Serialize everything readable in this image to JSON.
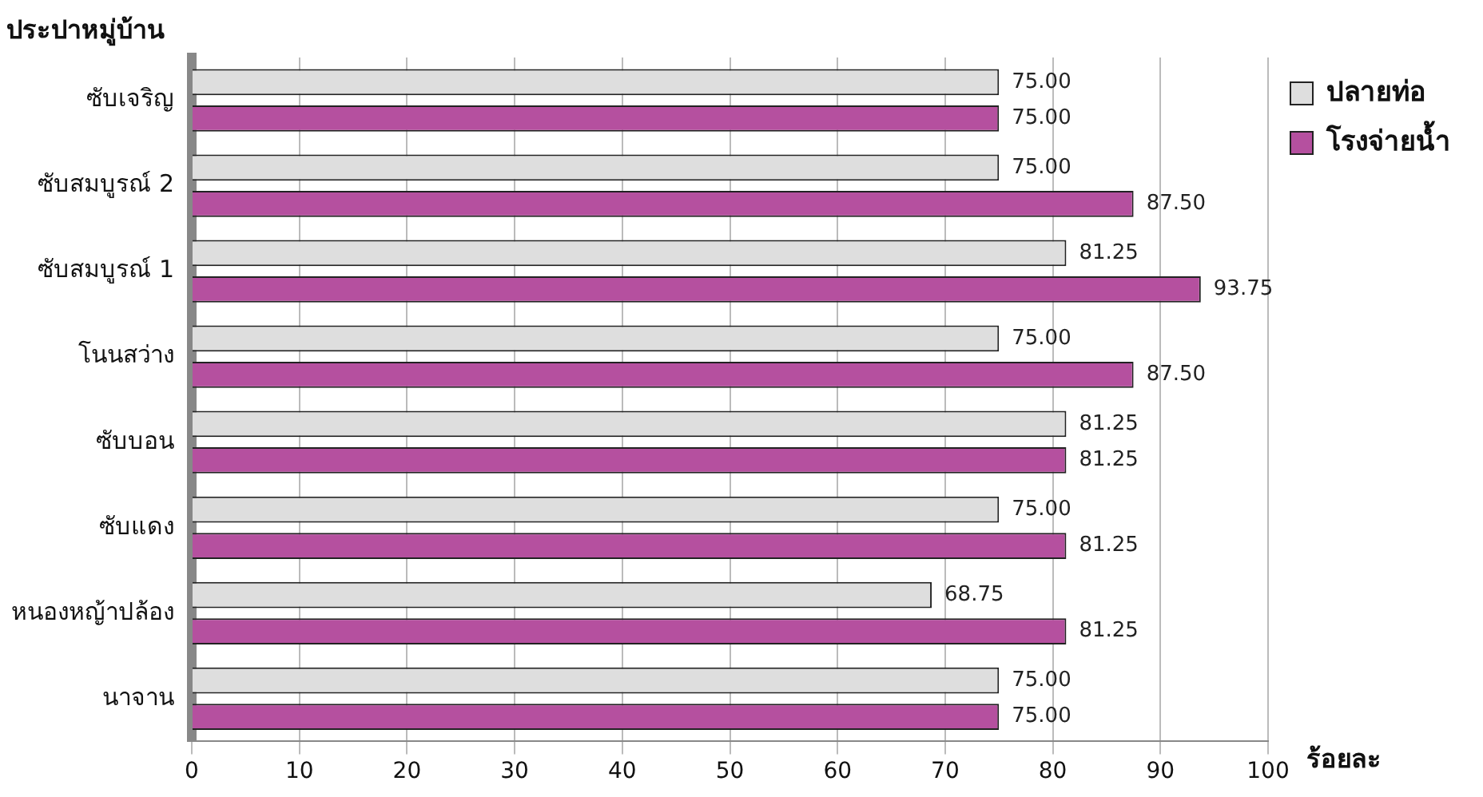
{
  "chart_data": {
    "type": "bar",
    "orientation": "horizontal",
    "ylabel": "ประปาหมู่บ้าน",
    "xlabel": "ร้อยละ",
    "categories": [
      "ซับเจริญ",
      "ซับสมบูรณ์ 2",
      "ซับสมบูรณ์ 1",
      "โนนสว่าง",
      "ซับบอน",
      "ซับแดง",
      "หนองหญ้าปล้อง",
      "นาจาน"
    ],
    "series": [
      {
        "name": "ปลายท่อ",
        "color": "#dedede",
        "values": [
          75,
          75,
          81.25,
          75,
          81.25,
          75,
          68.75,
          75
        ],
        "value_labels": [
          "75.00",
          "75.00",
          "81.25",
          "75.00",
          "81.25",
          "75.00",
          "68.75",
          "75.00"
        ]
      },
      {
        "name": "โรงจ่ายน้ำ",
        "color": "#b5509f",
        "values": [
          75,
          87.5,
          93.75,
          87.5,
          81.25,
          81.25,
          81.25,
          75
        ],
        "value_labels": [
          "75.00",
          "87.50",
          "93.75",
          "87.50",
          "81.25",
          "81.25",
          "81.25",
          "75.00"
        ]
      }
    ],
    "xlim": [
      0,
      100
    ],
    "xticks": [
      0,
      10,
      20,
      30,
      40,
      50,
      60,
      70,
      80,
      90,
      100
    ],
    "grid": "x",
    "legend": "top right"
  }
}
